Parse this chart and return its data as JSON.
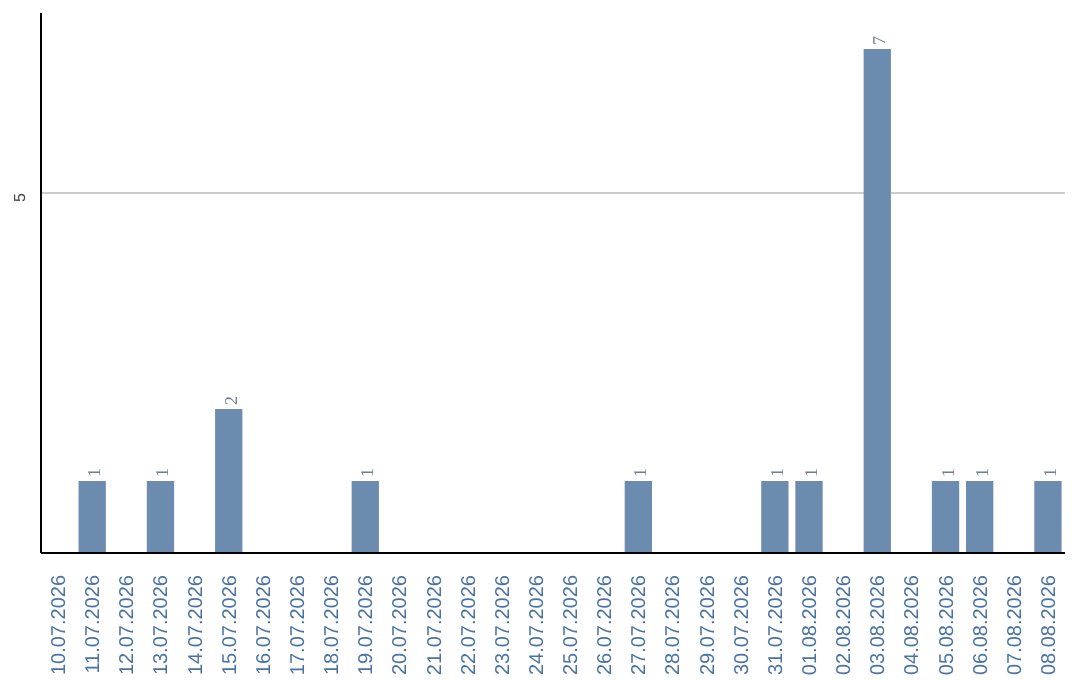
{
  "chart_data": {
    "type": "bar",
    "categories": [
      "10.07.2026",
      "11.07.2026",
      "12.07.2026",
      "13.07.2026",
      "14.07.2026",
      "15.07.2026",
      "16.07.2026",
      "17.07.2026",
      "18.07.2026",
      "19.07.2026",
      "20.07.2026",
      "21.07.2026",
      "22.07.2026",
      "23.07.2026",
      "24.07.2026",
      "25.07.2026",
      "26.07.2026",
      "27.07.2026",
      "28.07.2026",
      "29.07.2026",
      "30.07.2026",
      "31.07.2026",
      "01.08.2026",
      "02.08.2026",
      "03.08.2026",
      "04.08.2026",
      "05.08.2026",
      "06.08.2026",
      "07.08.2026",
      "08.08.2026"
    ],
    "values": [
      0,
      1,
      0,
      1,
      0,
      2,
      0,
      0,
      0,
      1,
      0,
      0,
      0,
      0,
      0,
      0,
      0,
      1,
      0,
      0,
      0,
      1,
      1,
      0,
      7,
      0,
      1,
      1,
      0,
      1
    ],
    "value_labels": [
      null,
      "1",
      null,
      "1",
      null,
      "2",
      null,
      null,
      null,
      "1",
      null,
      null,
      null,
      null,
      null,
      null,
      null,
      "1",
      null,
      null,
      null,
      "1",
      "1",
      null,
      "7",
      null,
      "1",
      "1",
      null,
      "1"
    ],
    "color": "#6b8cae",
    "ylim": [
      0,
      7.5
    ],
    "yticks": [
      5
    ],
    "grid": "y"
  }
}
